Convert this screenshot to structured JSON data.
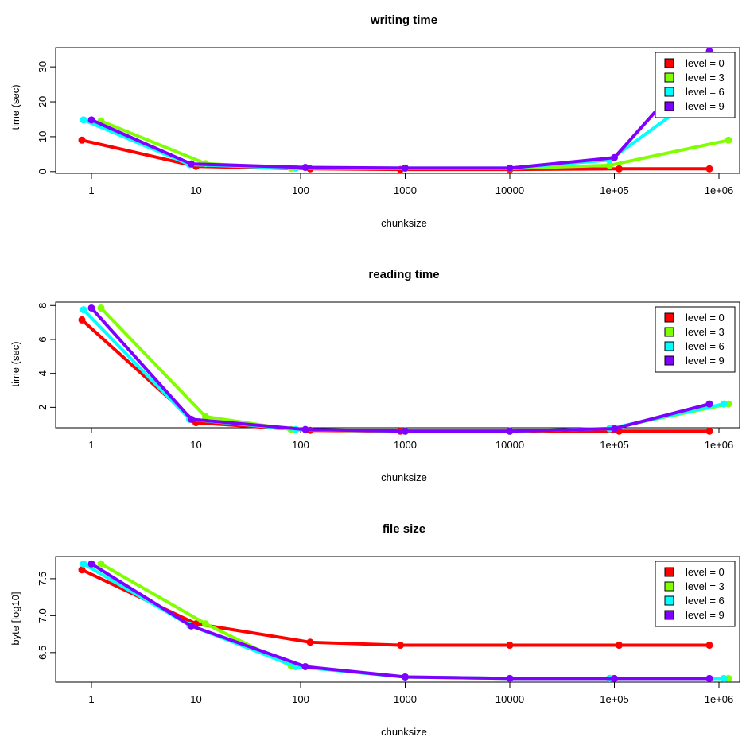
{
  "chart_data": [
    {
      "type": "line",
      "title": "writing time",
      "xlabel": "chunksize",
      "ylabel": "time (sec)",
      "x_scale": "log10",
      "x": [
        1,
        10,
        100,
        1000,
        10000,
        100000,
        1000000
      ],
      "xtick_labels": [
        "1",
        "10",
        "100",
        "1000",
        "10000",
        "1e+05",
        "1e+06"
      ],
      "yticks": [
        0,
        10,
        20,
        30
      ],
      "ylim": [
        -0.5,
        35.5
      ],
      "legend_position": "top-right",
      "series": [
        {
          "name": "level = 0",
          "color": "#FF0000",
          "values": [
            9.0,
            1.5,
            0.8,
            0.6,
            0.6,
            0.8,
            0.8
          ]
        },
        {
          "name": "level = 3",
          "color": "#80FF00",
          "values": [
            14.5,
            2.3,
            1.0,
            0.9,
            0.9,
            1.8,
            9.0
          ]
        },
        {
          "name": "level = 6",
          "color": "#00FFFF",
          "values": [
            14.8,
            2.0,
            1.0,
            1.0,
            1.0,
            3.3,
            27.0
          ]
        },
        {
          "name": "level = 9",
          "color": "#8000FF",
          "values": [
            14.8,
            2.2,
            1.2,
            1.0,
            1.0,
            4.0,
            34.5
          ]
        }
      ]
    },
    {
      "type": "line",
      "title": "reading time",
      "xlabel": "chunksize",
      "ylabel": "time (sec)",
      "x_scale": "log10",
      "x": [
        1,
        10,
        100,
        1000,
        10000,
        100000,
        1000000
      ],
      "xtick_labels": [
        "1",
        "10",
        "100",
        "1000",
        "10000",
        "1e+05",
        "1e+06"
      ],
      "yticks": [
        2,
        4,
        6,
        8
      ],
      "ylim": [
        0.8,
        8.2
      ],
      "legend_position": "top-right",
      "series": [
        {
          "name": "level = 0",
          "color": "#FF0000",
          "values": [
            7.15,
            1.1,
            0.65,
            0.6,
            0.6,
            0.6,
            0.6
          ]
        },
        {
          "name": "level = 3",
          "color": "#80FF00",
          "values": [
            7.85,
            1.45,
            0.7,
            0.6,
            0.6,
            0.75,
            2.2
          ]
        },
        {
          "name": "level = 6",
          "color": "#00FFFF",
          "values": [
            7.75,
            1.3,
            0.7,
            0.6,
            0.6,
            0.75,
            2.2
          ]
        },
        {
          "name": "level = 9",
          "color": "#8000FF",
          "values": [
            7.85,
            1.3,
            0.7,
            0.6,
            0.6,
            0.75,
            2.2
          ]
        }
      ]
    },
    {
      "type": "line",
      "title": "file size",
      "xlabel": "chunksize",
      "ylabel": "byte [log10]",
      "x_scale": "log10",
      "x": [
        1,
        10,
        100,
        1000,
        10000,
        100000,
        1000000
      ],
      "xtick_labels": [
        "1",
        "10",
        "100",
        "1000",
        "10000",
        "1e+05",
        "1e+06"
      ],
      "yticks": [
        6.5,
        7.0,
        7.5
      ],
      "ytick_labels": [
        "6.5",
        "7.0",
        "7.5"
      ],
      "ylim": [
        6.1,
        7.8
      ],
      "legend_position": "top-right",
      "series": [
        {
          "name": "level = 0",
          "color": "#FF0000",
          "values": [
            7.62,
            6.89,
            6.64,
            6.6,
            6.6,
            6.6,
            6.6
          ]
        },
        {
          "name": "level = 3",
          "color": "#80FF00",
          "values": [
            7.7,
            6.89,
            6.32,
            6.17,
            6.15,
            6.15,
            6.15
          ]
        },
        {
          "name": "level = 6",
          "color": "#00FFFF",
          "values": [
            7.7,
            6.87,
            6.31,
            6.17,
            6.15,
            6.15,
            6.15
          ]
        },
        {
          "name": "level = 9",
          "color": "#8000FF",
          "values": [
            7.7,
            6.86,
            6.31,
            6.17,
            6.15,
            6.15,
            6.15
          ]
        }
      ]
    }
  ]
}
